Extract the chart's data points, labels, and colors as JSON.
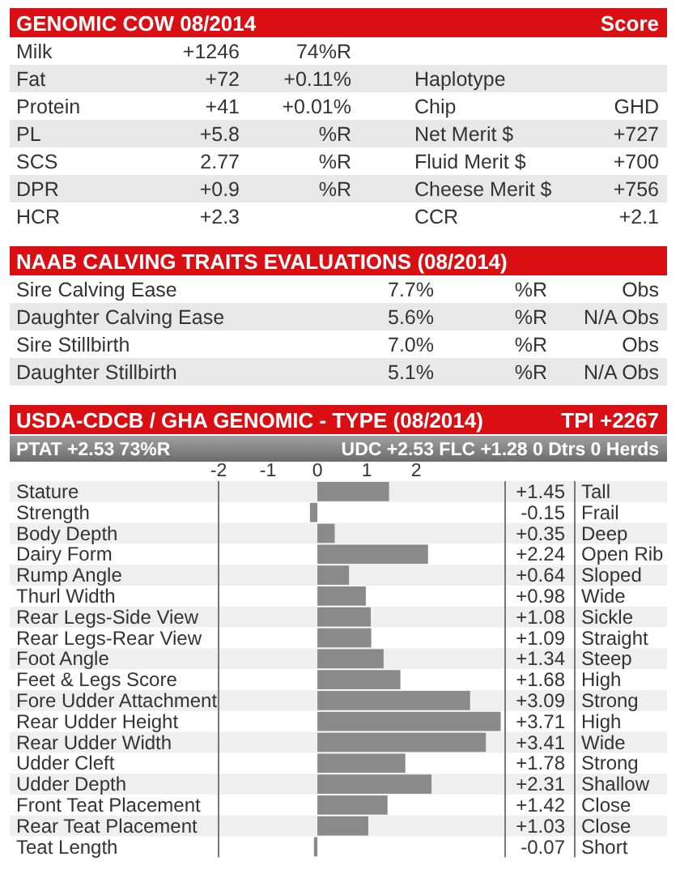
{
  "chart_data": [
    {
      "type": "other",
      "title": "GENOMIC COW 08/2014",
      "subtitle": "Score",
      "annotations": [
        "Milk",
        "+1246",
        "74%R",
        "Fat",
        "+72",
        "+0.11%",
        "Haplotype",
        "Protein",
        "+41",
        "+0.01%",
        "Chip",
        "GHD",
        "PL",
        "+5.8",
        "%R",
        "Net Merit $",
        "+727",
        "SCS",
        "2.77",
        "%R",
        "Fluid Merit $",
        "+700",
        "DPR",
        "+0.9",
        "%R",
        "Cheese Merit $",
        "+756",
        "HCR",
        "+2.3",
        "CCR",
        "+2.1"
      ]
    },
    {
      "type": "other",
      "title": "NAAB CALVING TRAITS EVALUATIONS  (08/2014)",
      "annotations": [
        "Sire Calving Ease",
        "7.7%",
        "%R",
        "Obs",
        "Daughter Calving Ease",
        "5.6%",
        "%R",
        "N/A Obs",
        "Sire Stillbirth",
        "7.0%",
        "%R",
        "Obs",
        "Daughter Stillbirth",
        "5.1%",
        "%R",
        "N/A Obs"
      ]
    },
    {
      "type": "bar",
      "orientation": "horizontal",
      "title": "USDA-CDCB / GHA GENOMIC - TYPE  (08/2014)",
      "categories": [
        "Stature",
        "Strength",
        "Body Depth",
        "Dairy Form",
        "Rump Angle",
        "Thurl Width",
        "Rear Legs-Side View",
        "Rear Legs-Rear View",
        "Foot Angle",
        "Feet & Legs Score",
        "Fore Udder Attachment",
        "Rear Udder Height",
        "Rear Udder Width",
        "Udder Cleft",
        "Udder Depth",
        "Front Teat Placement",
        "Rear Teat Placement",
        "Teat Length"
      ],
      "values": [
        1.45,
        -0.15,
        0.35,
        2.24,
        0.64,
        0.98,
        1.08,
        1.09,
        1.34,
        1.68,
        3.09,
        3.71,
        3.41,
        1.78,
        2.31,
        1.42,
        1.03,
        -0.07
      ],
      "value_labels": [
        "+1.45",
        "-0.15",
        "+0.35",
        "+2.24",
        "+0.64",
        "+0.98",
        "+1.08",
        "+1.09",
        "+1.34",
        "+1.68",
        "+3.09",
        "+3.71",
        "+3.41",
        "+1.78",
        "+2.31",
        "+1.42",
        "+1.03",
        "-0.07"
      ],
      "color": "#8a8a8a",
      "xlim": [
        -2,
        3.8
      ],
      "xticks": [
        -2,
        -1,
        0,
        1,
        2
      ],
      "annotations": [
        "TPI  +2267",
        "PTAT +2.53   73%R",
        "UDC +2.53   FLC +1.28   0 Dtrs   0 Herds",
        "Tall",
        "Frail",
        "Deep",
        "Open Rib",
        "Sloped",
        "Wide",
        "Sickle",
        "Straight",
        "Steep",
        "High",
        "Strong",
        "High",
        "Wide",
        "Strong",
        "Shallow",
        "Close",
        "Close",
        "Short"
      ]
    }
  ]
}
